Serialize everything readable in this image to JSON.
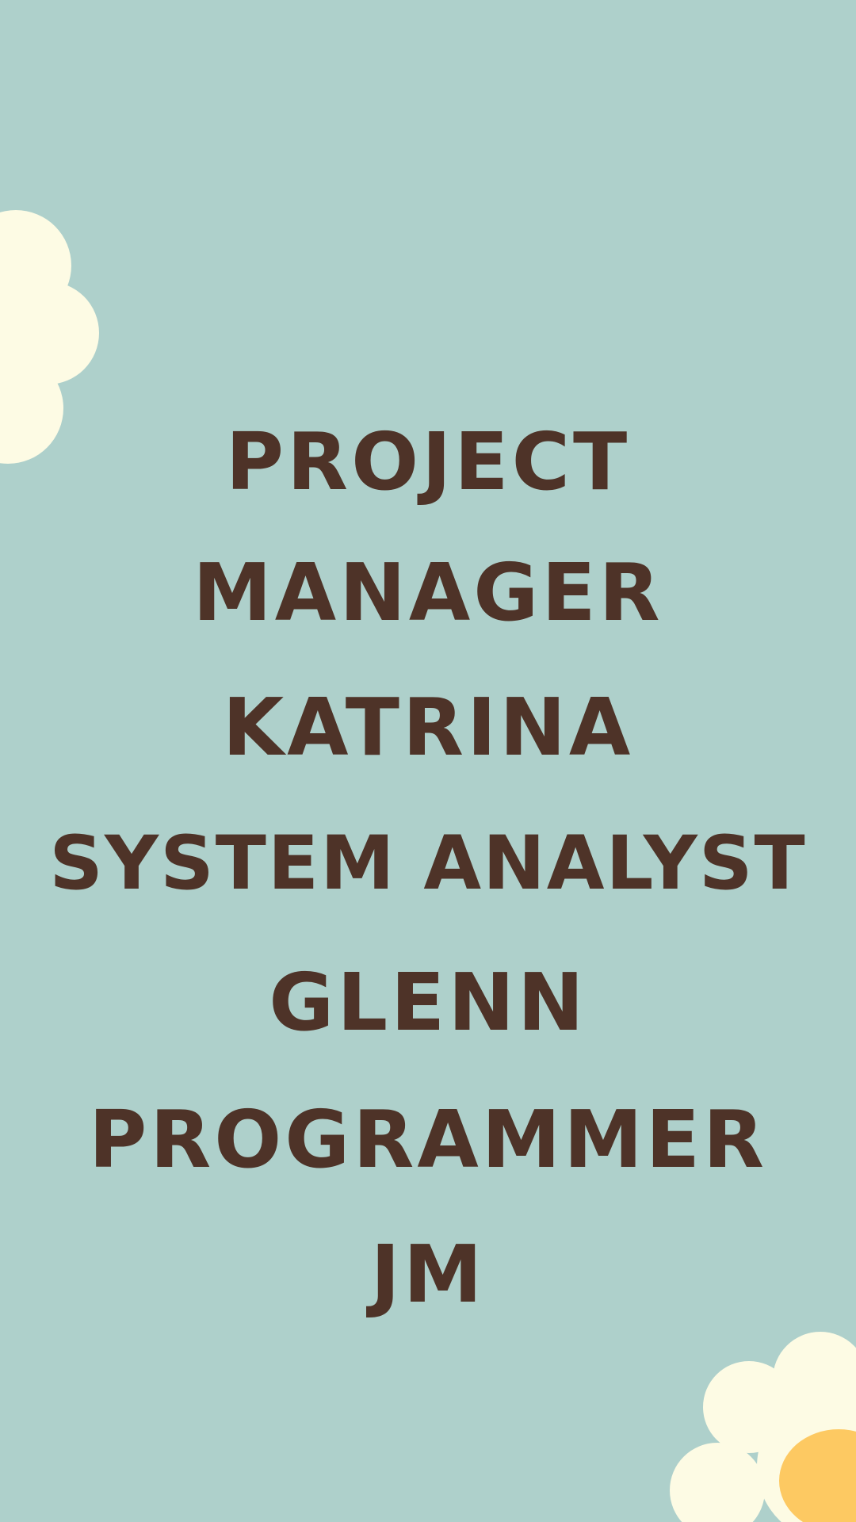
{
  "lines": [
    "PROJECT",
    "MANAGER",
    "KATRINA",
    "SYSTEM ANALYST",
    "GLENN",
    "PROGRAMMER",
    "JM"
  ],
  "colors": {
    "background": "#aed0cb",
    "text": "#4e3328",
    "flower_petal": "#fdfbe4",
    "flower_center": "#fdc962"
  }
}
